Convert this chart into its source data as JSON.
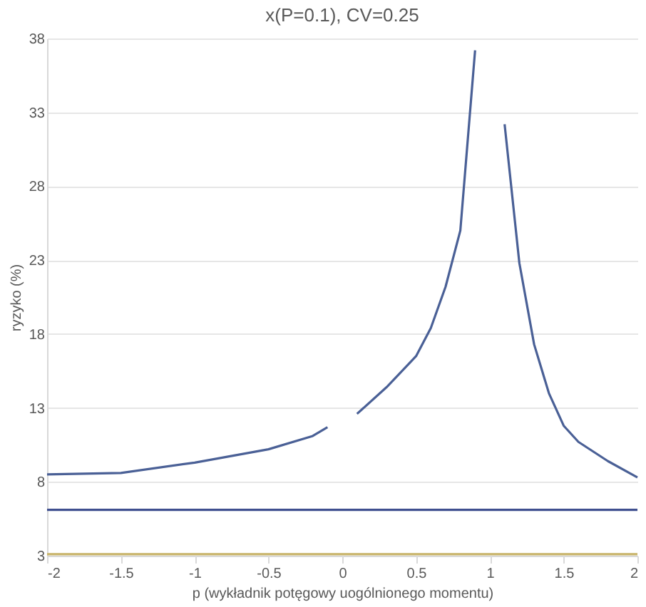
{
  "chart_data": {
    "type": "line",
    "title": "x(P=0.1), CV=0.25",
    "xlabel": "p (wykładnik potęgowy uogólnionego momentu)",
    "ylabel": "ryzyko (%)",
    "xlim": [
      -2,
      2
    ],
    "xticks": [
      -2,
      -1.5,
      -1,
      -0.5,
      0,
      0.5,
      1,
      1.5,
      2
    ],
    "ylim": [
      3,
      38
    ],
    "yticks": [
      3,
      8,
      13,
      18,
      23,
      28,
      33,
      38
    ],
    "grid": "y",
    "legend": false,
    "line_style": "solid",
    "marker": "none",
    "series": [
      {
        "color": "#4a6096",
        "x": [
          -2,
          -1.5,
          -1,
          -0.5,
          -0.2,
          -0.1,
          0,
          0.1,
          0.3,
          0.5,
          0.6,
          0.7,
          0.8,
          0.9,
          1,
          1.1,
          1.2,
          1.3,
          1.4,
          1.5,
          1.6,
          1.8,
          2
        ],
        "values": [
          8.5,
          8.6,
          9.3,
          10.2,
          11.1,
          11.7,
          null,
          12.6,
          14.4,
          16.5,
          18.4,
          21.2,
          25,
          37.2,
          null,
          32.2,
          22.8,
          17.3,
          14,
          11.8,
          10.7,
          9.4,
          8.3
        ]
      },
      {
        "color": "#3f4f8f",
        "x": [
          -2,
          2
        ],
        "values": [
          6.1,
          6.1
        ]
      },
      {
        "color": "#c8b46a",
        "x": [
          -2,
          2
        ],
        "values": [
          3.1,
          3.1
        ]
      }
    ]
  }
}
